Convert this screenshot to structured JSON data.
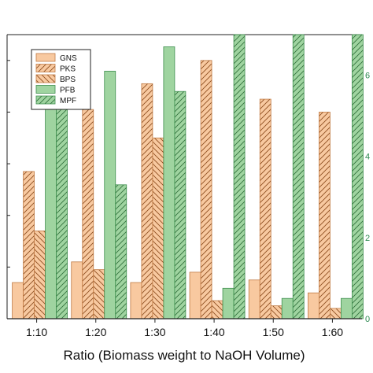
{
  "chart_data": {
    "type": "bar",
    "categories": [
      "1:10",
      "1:20",
      "1:30",
      "1:40",
      "1:50",
      "1:60"
    ],
    "xlabel": "Ratio (Biomass weight to NaOH Volume)",
    "left_axis": {
      "series": [
        {
          "name": "GNS",
          "values": [
            0.7,
            1.1,
            0.7,
            0.9,
            0.75,
            0.5
          ]
        },
        {
          "name": "PKS",
          "values": [
            2.85,
            4.05,
            4.55,
            5.0,
            4.25,
            4.0
          ]
        },
        {
          "name": "BPS",
          "values": [
            1.7,
            0.95,
            3.5,
            0.35,
            0.25,
            0.2
          ]
        }
      ]
    },
    "right_axis": {
      "ylim": [
        0,
        7
      ],
      "ticks": [
        0,
        2,
        4,
        6
      ],
      "series": [
        {
          "name": "PFB",
          "values": [
            6.5,
            6.1,
            6.7,
            0.75,
            0.5,
            0.5
          ]
        },
        {
          "name": "MPF",
          "values": [
            5.6,
            3.3,
            5.6,
            8.5,
            7.9,
            7.4
          ]
        }
      ]
    },
    "legend": {
      "placement": "top-left",
      "entries": [
        "GNS",
        "PKS",
        "BPS",
        "PFB",
        "MPF"
      ]
    },
    "colors": {
      "GNS": "#f8c9a0",
      "PKS": "#f8c9a0",
      "BPS": "#f8c9a0",
      "PFB": "#9fd4a0",
      "MPF": "#9fd4a0",
      "orange_edge": "#c07b45",
      "green_edge": "#3f8f4f",
      "right_axis": "#2f8a52"
    },
    "grid": false
  }
}
